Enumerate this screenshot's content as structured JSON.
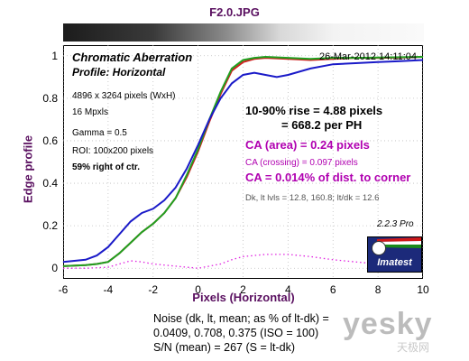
{
  "file_title": "F2.0.JPG",
  "header": {
    "chart_title": "Chromatic Aberration",
    "profile": "Profile: Horizontal",
    "timestamp": "26-Mar-2012 14:11:04"
  },
  "info": {
    "pixels": "4896 x 3264 pixels (WxH)",
    "mpxls": "16 Mpxls",
    "gamma": "Gamma = 0.5",
    "roi": "ROI: 100x200 pixels",
    "position": "59% right of ctr."
  },
  "results": {
    "rise_line1": "10-90% rise = 4.88 pixels",
    "rise_line2": "= 668.2 per PH",
    "ca_area": "CA (area) = 0.24 pixels",
    "ca_crossing": "CA (crossing) = 0.097 pixels",
    "ca_dist": "CA = 0.014% of dist. to corner",
    "dk_line": "Dk, lt lvls = 12.8, 160.8;  lt/dk = 12.6"
  },
  "version": "2.2.3  Pro",
  "logo": {
    "text": "Imatest",
    "colors": [
      "#d01818",
      "#ffffff",
      "#1a8a1a"
    ]
  },
  "noise": {
    "line1": "Noise (dk, lt, mean; as % of lt-dk) =",
    "line2": "0.0409,  0.708,  0.375  (ISO =  100)",
    "line3": "S/N (mean) = 267  (S = lt-dk)"
  },
  "watermark": {
    "main": "yesky",
    "sub": "天极网"
  },
  "chart_data": {
    "type": "line",
    "title": "Chromatic Aberration",
    "xlabel": "Pixels (Horizontal)",
    "ylabel": "Edge profile",
    "xlim": [
      -6,
      10
    ],
    "ylim": [
      -0.05,
      1.05
    ],
    "xticks": [
      -6,
      -4,
      -2,
      0,
      2,
      4,
      6,
      8,
      10
    ],
    "yticks": [
      0,
      0.2,
      0.4,
      0.6,
      0.8,
      1
    ],
    "ytick_labels": [
      "0",
      "0.2",
      "0.4",
      "0.6",
      "0.8",
      "1"
    ],
    "grid": true,
    "series": [
      {
        "color": "#d02020",
        "style": "solid",
        "x": [
          -6,
          -5,
          -4.5,
          -4,
          -3.5,
          -3,
          -2.5,
          -2,
          -1.5,
          -1,
          -0.5,
          0,
          0.5,
          1,
          1.5,
          2,
          2.5,
          3,
          4,
          5,
          6,
          7,
          8,
          9,
          10
        ],
        "y": [
          0.01,
          0.015,
          0.02,
          0.03,
          0.07,
          0.12,
          0.17,
          0.21,
          0.26,
          0.33,
          0.43,
          0.55,
          0.69,
          0.82,
          0.93,
          0.97,
          0.985,
          0.99,
          0.985,
          0.98,
          0.985,
          0.99,
          0.99,
          0.992,
          0.995
        ]
      },
      {
        "color": "#20a020",
        "style": "solid",
        "x": [
          -6,
          -5,
          -4.5,
          -4,
          -3.5,
          -3,
          -2.5,
          -2,
          -1.5,
          -1,
          -0.5,
          0,
          0.5,
          1,
          1.5,
          2,
          2.5,
          3,
          4,
          5,
          6,
          7,
          8,
          9,
          10
        ],
        "y": [
          0.01,
          0.015,
          0.02,
          0.03,
          0.07,
          0.12,
          0.17,
          0.21,
          0.26,
          0.33,
          0.44,
          0.56,
          0.7,
          0.83,
          0.94,
          0.98,
          0.99,
          0.995,
          0.99,
          0.985,
          0.99,
          0.99,
          0.992,
          0.993,
          0.995
        ]
      },
      {
        "color": "#1a1ac8",
        "style": "solid",
        "x": [
          -6,
          -5,
          -4.5,
          -4,
          -3.5,
          -3,
          -2.5,
          -2,
          -1.5,
          -1,
          -0.5,
          0,
          0.5,
          1,
          1.5,
          2,
          2.5,
          3,
          3.5,
          4,
          5,
          6,
          7,
          8,
          9,
          10
        ],
        "y": [
          0.03,
          0.04,
          0.06,
          0.1,
          0.16,
          0.22,
          0.26,
          0.28,
          0.32,
          0.38,
          0.47,
          0.58,
          0.7,
          0.8,
          0.87,
          0.91,
          0.92,
          0.91,
          0.9,
          0.91,
          0.94,
          0.96,
          0.965,
          0.97,
          0.975,
          0.98
        ]
      },
      {
        "color": "#e020e0",
        "style": "dotted",
        "x": [
          -6,
          -5,
          -4,
          -3.5,
          -3,
          -2.5,
          -2,
          -1,
          -0.5,
          0,
          0.5,
          1,
          1.5,
          2,
          3,
          4,
          5,
          6,
          7,
          8,
          9,
          10
        ],
        "y": [
          0.0,
          0.0,
          0.005,
          0.02,
          0.035,
          0.03,
          0.02,
          0.01,
          0.005,
          0.0,
          0.01,
          0.02,
          0.04,
          0.055,
          0.065,
          0.065,
          0.055,
          0.04,
          0.03,
          0.02,
          0.02,
          0.015
        ]
      }
    ]
  }
}
